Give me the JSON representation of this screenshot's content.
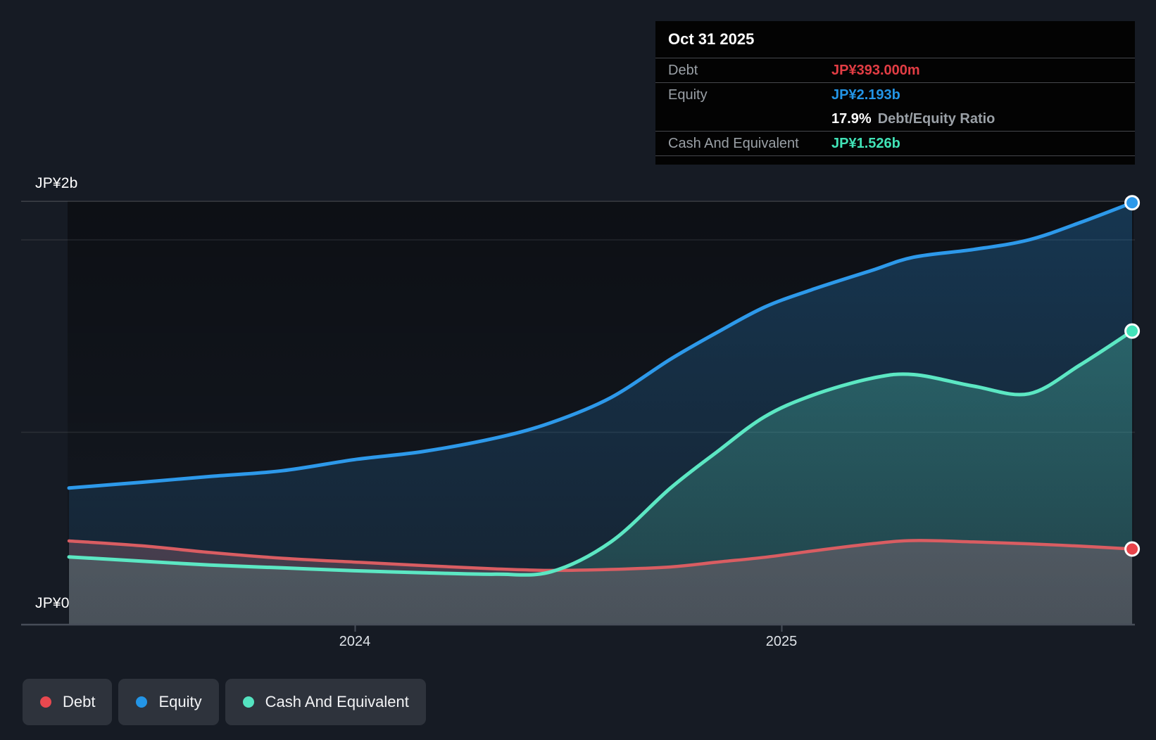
{
  "y_axis": {
    "top_label": "JP¥2b",
    "zero_label": "JP¥0"
  },
  "x_axis": {
    "ticks": [
      "2024",
      "2025"
    ]
  },
  "tooltip": {
    "date": "Oct 31 2025",
    "debt_label": "Debt",
    "debt_value": "JP¥393.000m",
    "equity_label": "Equity",
    "equity_value": "JP¥2.193b",
    "ratio_value": "17.9%",
    "ratio_label": "Debt/Equity Ratio",
    "cash_label": "Cash And Equivalent",
    "cash_value": "JP¥1.526b"
  },
  "legend": {
    "items": [
      {
        "label": "Debt",
        "color": "#e8484f"
      },
      {
        "label": "Equity",
        "color": "#2395e6"
      },
      {
        "label": "Cash And Equivalent",
        "color": "#54e3c0"
      }
    ]
  },
  "colors": {
    "background": "#161b24",
    "tooltip_background": "#030303",
    "debt": "#d95d62",
    "equity": "#2d99ea",
    "cash": "#5ce7c3",
    "debt_value_text": "#e23d44",
    "equity_value_text": "#2395e6",
    "cash_value_text": "#41e3b7",
    "gridline": "rgba(255,255,255,0.09)",
    "axis_line": "#474d58"
  },
  "chart_data": {
    "type": "area",
    "title": "",
    "xlabel": "",
    "ylabel": "JP¥",
    "x_unit": "decimal_year",
    "xlim": [
      2023.33,
      2025.83
    ],
    "ylim": [
      0,
      2.2
    ],
    "y_gridlines_b": [
      2.2,
      2.0,
      1.0
    ],
    "x_tick_years": [
      2024,
      2025
    ],
    "legend_position": "bottom-left",
    "last_point_date": "Oct 31 2025",
    "debt_equity_ratio_pct": 17.9,
    "x": [
      2023.33,
      2023.5,
      2023.66,
      2023.83,
      2024.0,
      2024.16,
      2024.33,
      2024.46,
      2024.6,
      2024.74,
      2024.85,
      2024.96,
      2025.07,
      2025.21,
      2025.31,
      2025.45,
      2025.58,
      2025.7,
      2025.822
    ],
    "series": [
      {
        "id": "equity",
        "name": "Equity",
        "color": "#2d99ea",
        "marker_color": "#2d99ea",
        "unit": "JP¥ billions",
        "values": [
          0.71,
          0.74,
          0.77,
          0.8,
          0.858,
          0.9,
          0.97,
          1.05,
          1.18,
          1.38,
          1.52,
          1.65,
          1.74,
          1.84,
          1.91,
          1.95,
          2.0,
          2.09,
          2.193
        ]
      },
      {
        "id": "cash",
        "name": "Cash And Equivalent",
        "color": "#5ce7c3",
        "marker_color": "#43e3b9",
        "unit": "JP¥ billions",
        "values": [
          0.352,
          0.33,
          0.31,
          0.295,
          0.28,
          0.27,
          0.262,
          0.275,
          0.43,
          0.71,
          0.9,
          1.08,
          1.19,
          1.28,
          1.3,
          1.24,
          1.2,
          1.35,
          1.526
        ]
      },
      {
        "id": "debt",
        "name": "Debt",
        "color": "#d95d62",
        "marker_color": "#e8434a",
        "unit": "JP¥ billions",
        "values": [
          0.435,
          0.41,
          0.375,
          0.345,
          0.325,
          0.307,
          0.29,
          0.282,
          0.287,
          0.3,
          0.325,
          0.35,
          0.382,
          0.42,
          0.437,
          0.43,
          0.42,
          0.408,
          0.393
        ]
      }
    ]
  }
}
